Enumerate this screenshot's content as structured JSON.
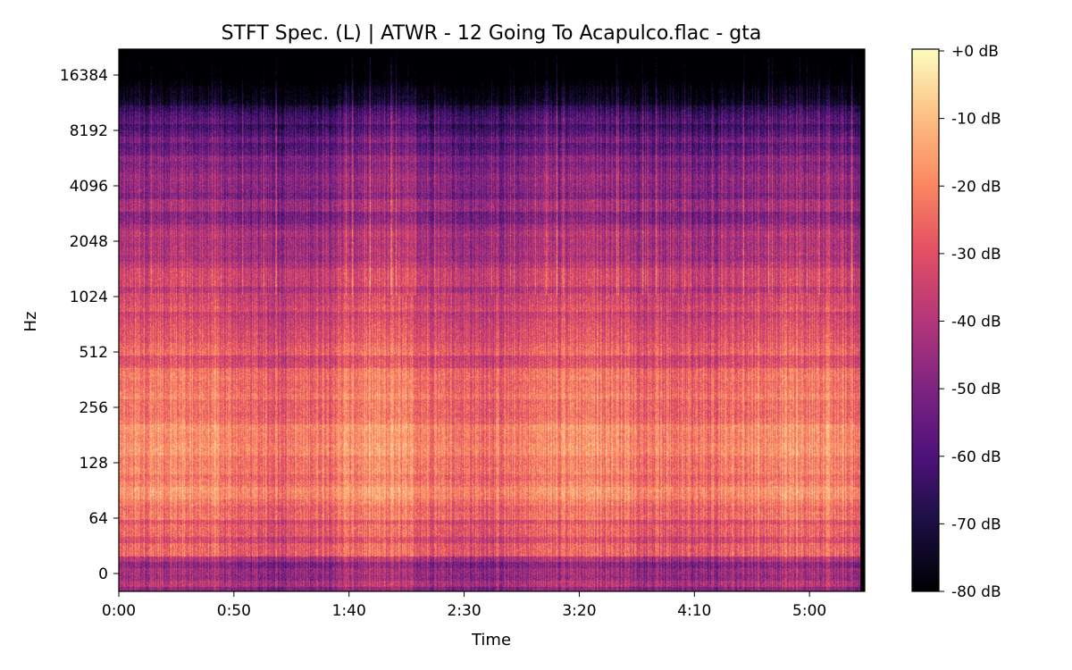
{
  "chart_data": {
    "type": "heatmap",
    "title": "STFT Spec. (L) | ATWR - 12 Going To Acapulco.flac - gta",
    "xlabel": "Time",
    "ylabel": "Hz",
    "x_ticks": [
      "0:00",
      "0:50",
      "1:40",
      "2:30",
      "3:20",
      "4:10",
      "5:00"
    ],
    "x_tick_seconds": [
      0,
      50,
      100,
      150,
      200,
      250,
      300
    ],
    "xlim_seconds": [
      0,
      324
    ],
    "y_ticks": [
      "16384",
      "8192",
      "4096",
      "2048",
      "1024",
      "512",
      "256",
      "128",
      "64",
      "0"
    ],
    "y_scale": "log2 (symlog)",
    "ylim_hz": [
      0,
      22050
    ],
    "colormap": "magma",
    "colorbar": {
      "ticks": [
        "+0 dB",
        "-10 dB",
        "-20 dB",
        "-30 dB",
        "-40 dB",
        "-50 dB",
        "-60 dB",
        "-70 dB",
        "-80 dB"
      ],
      "range_db": [
        -80,
        0
      ]
    },
    "grid": false
  }
}
